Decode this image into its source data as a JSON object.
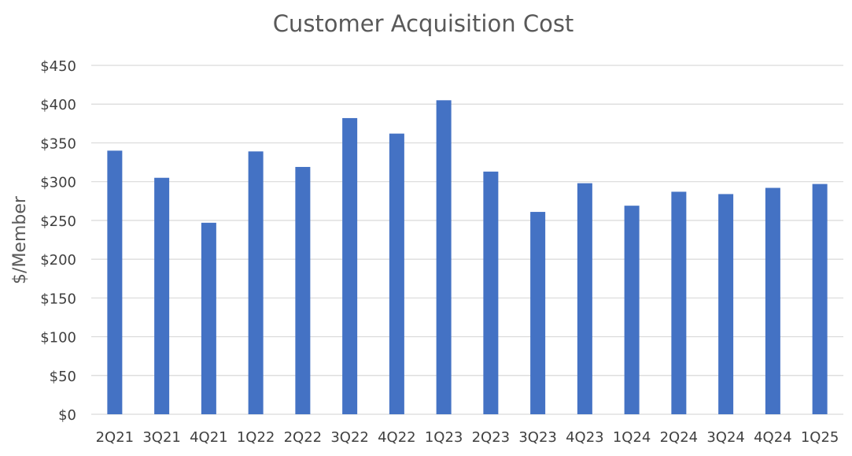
{
  "chart_data": {
    "type": "bar",
    "title": "Customer Acquisition Cost",
    "ylabel": "$/Member",
    "xlabel": "",
    "categories": [
      "2Q21",
      "3Q21",
      "4Q21",
      "1Q22",
      "2Q22",
      "3Q22",
      "4Q22",
      "1Q23",
      "2Q23",
      "3Q23",
      "4Q23",
      "1Q24",
      "2Q24",
      "3Q24",
      "4Q24",
      "1Q25"
    ],
    "series": [
      {
        "values": [
          340,
          305,
          247,
          339,
          319,
          382,
          362,
          405,
          313,
          261,
          298,
          269,
          287,
          284,
          292,
          297
        ],
        "color": "#4472c4"
      }
    ],
    "ylim": [
      0,
      450
    ],
    "yticks": [
      0,
      50,
      100,
      150,
      200,
      250,
      300,
      350,
      400,
      450
    ],
    "ytick_labels": [
      "$0",
      "$50",
      "$100",
      "$150",
      "$200",
      "$250",
      "$300",
      "$350",
      "$400",
      "$450"
    ],
    "grid": true,
    "legend": false
  }
}
